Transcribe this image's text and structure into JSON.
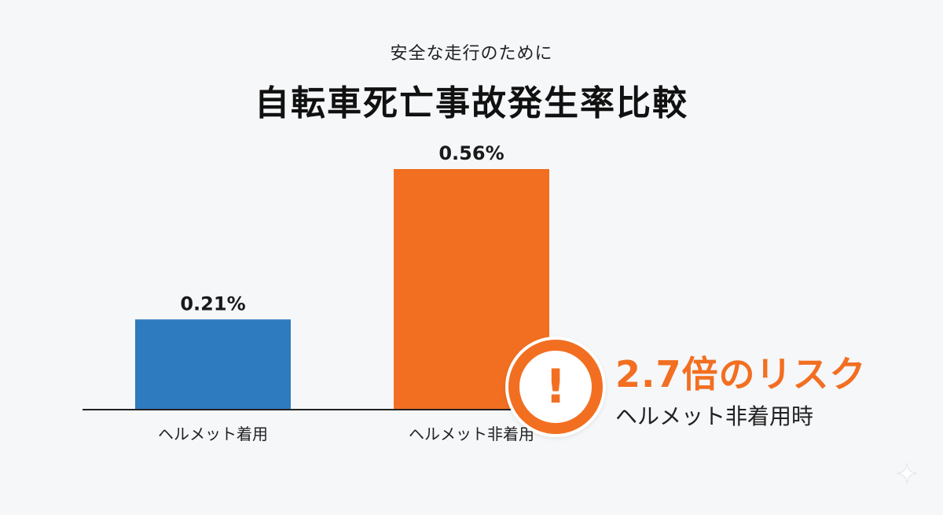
{
  "header": {
    "subtitle": "安全な走行のために",
    "title": "自転車死亡事故発生率比較"
  },
  "chart_data": {
    "type": "bar",
    "title": "自転車死亡事故発生率比較",
    "subtitle": "安全な走行のために",
    "categories": [
      "ヘルメット着用",
      "ヘルメット非着用"
    ],
    "values": [
      0.21,
      0.56
    ],
    "value_labels": [
      "0.21%",
      "0.56%"
    ],
    "colors": [
      "#2e7bbf",
      "#f26f21"
    ],
    "ylim": [
      0,
      0.56
    ],
    "xlabel": "",
    "ylabel": "",
    "grid": false
  },
  "callout": {
    "icon": "exclamation-icon",
    "mark": "!",
    "headline": "2.7倍のリスク",
    "caption": "ヘルメット非着用時",
    "color": "#f26f21"
  },
  "decorations": {
    "corner_icon": "sparkle-icon"
  }
}
